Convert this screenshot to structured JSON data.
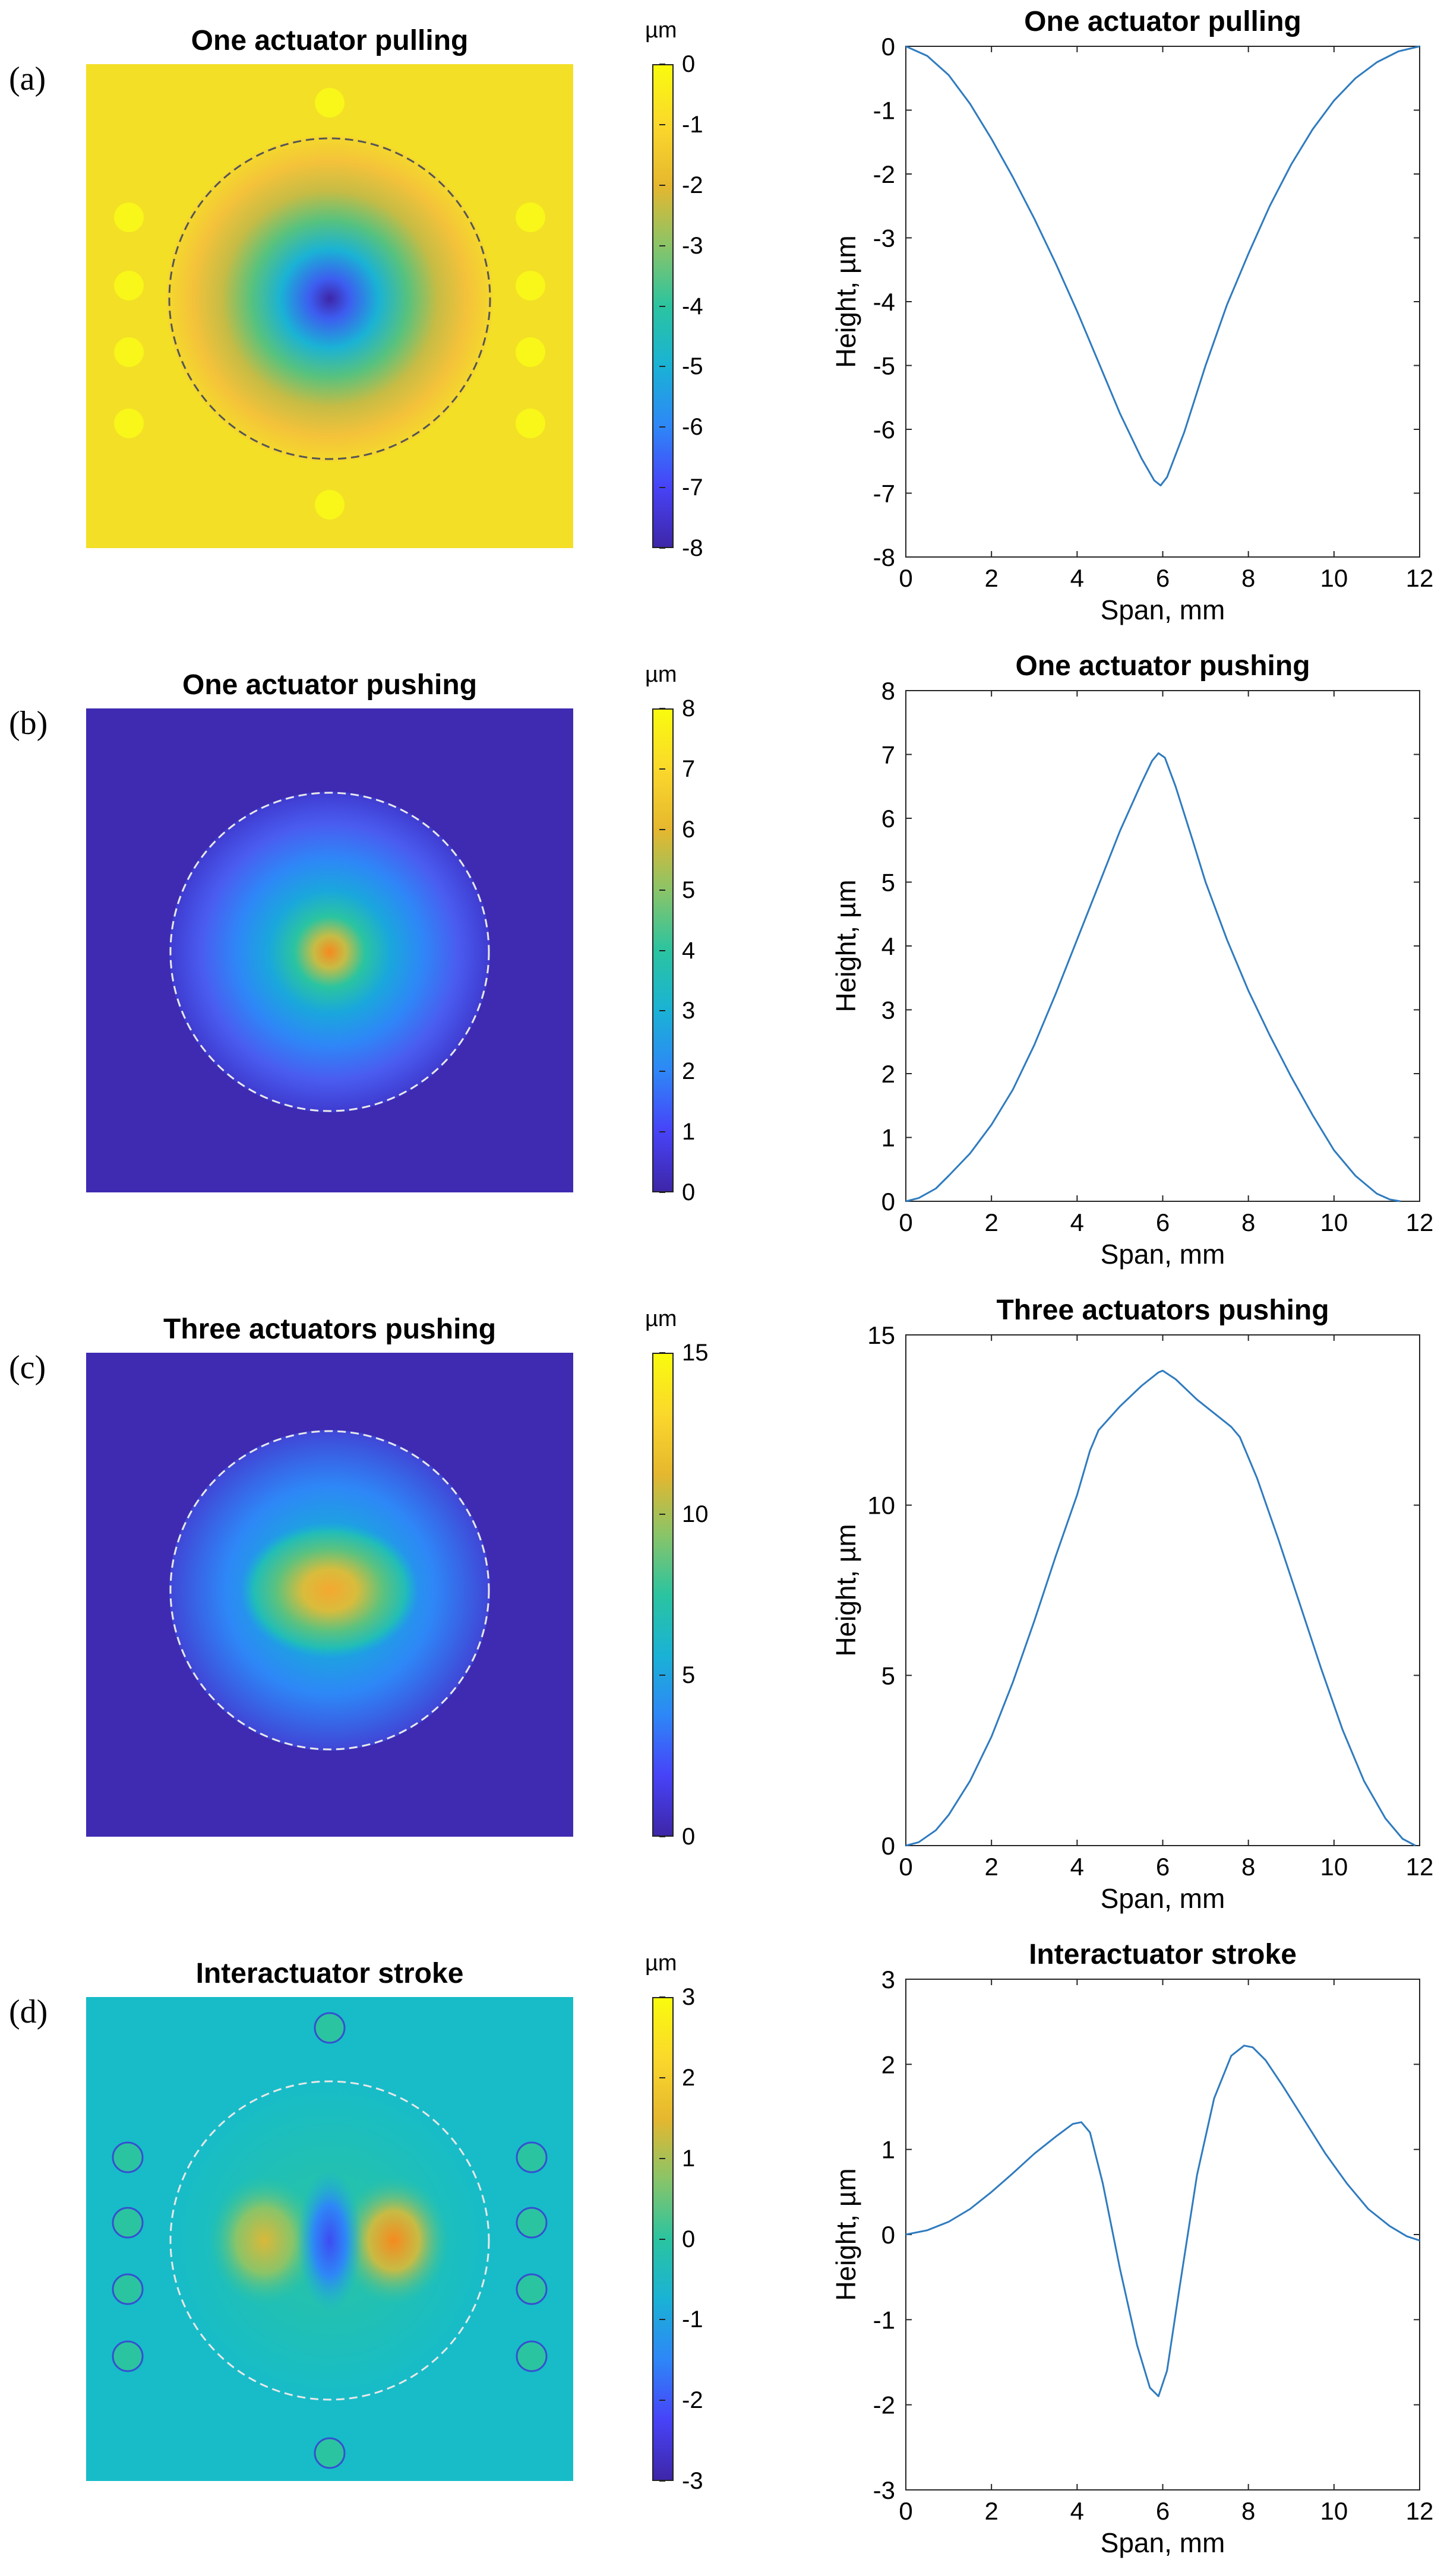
{
  "figure": {
    "panels": [
      {
        "label": "(a)",
        "map_title": "One actuator pulling",
        "colorbar_unit": "µm",
        "colorbar_ticks": [
          "0",
          "-1",
          "-2",
          "-3",
          "-4",
          "-5",
          "-6",
          "-7",
          "-8"
        ]
      },
      {
        "label": "(b)",
        "map_title": "One actuator pushing",
        "colorbar_unit": "µm",
        "colorbar_ticks": [
          "8",
          "7",
          "6",
          "5",
          "4",
          "3",
          "2",
          "1",
          "0"
        ]
      },
      {
        "label": "(c)",
        "map_title": "Three actuators pushing",
        "colorbar_unit": "µm",
        "colorbar_ticks": [
          "15",
          "10",
          "5",
          "0"
        ]
      },
      {
        "label": "(d)",
        "map_title": "Interactuator stroke",
        "colorbar_unit": "µm",
        "colorbar_ticks": [
          "3",
          "2",
          "1",
          "0",
          "-1",
          "-2",
          "-3"
        ]
      }
    ]
  },
  "colors": {
    "line": "#2f7bbf",
    "parula": [
      "#3e26a8",
      "#4743f8",
      "#2e87f7",
      "#1ab2d5",
      "#2bc4a0",
      "#8ac468",
      "#e5b72f",
      "#fbd82c",
      "#f9fb0e"
    ]
  },
  "chart_data": [
    {
      "type": "line",
      "title": "One actuator pulling",
      "xlabel": "Span, mm",
      "ylabel": "Height, µm",
      "xlim": [
        0,
        12
      ],
      "ylim": [
        -8,
        0
      ],
      "xticks": [
        0,
        2,
        4,
        6,
        8,
        10,
        12
      ],
      "yticks": [
        -8,
        -7,
        -6,
        -5,
        -4,
        -3,
        -2,
        -1,
        0
      ],
      "x": [
        0,
        0.5,
        1,
        1.5,
        2,
        2.5,
        3,
        3.5,
        4,
        4.5,
        5,
        5.5,
        5.8,
        5.95,
        6.1,
        6.5,
        7,
        7.5,
        8,
        8.5,
        9,
        9.5,
        10,
        10.5,
        11,
        11.5,
        12
      ],
      "y": [
        0,
        -0.15,
        -0.45,
        -0.9,
        -1.45,
        -2.05,
        -2.7,
        -3.4,
        -4.15,
        -4.95,
        -5.75,
        -6.45,
        -6.8,
        -6.88,
        -6.75,
        -6.05,
        -5.0,
        -4.05,
        -3.25,
        -2.5,
        -1.85,
        -1.3,
        -0.85,
        -0.5,
        -0.25,
        -0.08,
        0
      ]
    },
    {
      "type": "line",
      "title": "One actuator pushing",
      "xlabel": "Span, mm",
      "ylabel": "Height, µm",
      "xlim": [
        0,
        12
      ],
      "ylim": [
        0,
        8
      ],
      "xticks": [
        0,
        2,
        4,
        6,
        8,
        10,
        12
      ],
      "yticks": [
        0,
        1,
        2,
        3,
        4,
        5,
        6,
        7,
        8
      ],
      "x": [
        0,
        0.3,
        0.7,
        1,
        1.5,
        2,
        2.5,
        3,
        3.5,
        4,
        4.5,
        5,
        5.5,
        5.75,
        5.9,
        6.05,
        6.3,
        6.7,
        7,
        7.5,
        8,
        8.5,
        9,
        9.5,
        10,
        10.5,
        11,
        11.3,
        11.55
      ],
      "y": [
        0,
        0.05,
        0.2,
        0.4,
        0.75,
        1.2,
        1.75,
        2.45,
        3.25,
        4.1,
        4.95,
        5.8,
        6.55,
        6.9,
        7.02,
        6.95,
        6.5,
        5.65,
        5.0,
        4.1,
        3.3,
        2.6,
        1.95,
        1.35,
        0.8,
        0.4,
        0.12,
        0.03,
        0
      ]
    },
    {
      "type": "line",
      "title": "Three actuators pushing",
      "xlabel": "Span, mm",
      "ylabel": "Height, µm",
      "xlim": [
        0,
        12
      ],
      "ylim": [
        0,
        15
      ],
      "xticks": [
        0,
        2,
        4,
        6,
        8,
        10,
        12
      ],
      "yticks": [
        0,
        5,
        10,
        15
      ],
      "x": [
        0,
        0.3,
        0.7,
        1,
        1.5,
        2,
        2.5,
        3,
        3.5,
        4,
        4.3,
        4.5,
        5,
        5.5,
        5.9,
        6.0,
        6.3,
        6.8,
        7.3,
        7.6,
        7.8,
        8.2,
        8.7,
        9.2,
        9.7,
        10.2,
        10.7,
        11.2,
        11.6,
        11.9
      ],
      "y": [
        0,
        0.1,
        0.45,
        0.9,
        1.9,
        3.2,
        4.8,
        6.6,
        8.5,
        10.3,
        11.6,
        12.2,
        12.9,
        13.5,
        13.9,
        13.95,
        13.7,
        13.1,
        12.6,
        12.3,
        12.0,
        10.8,
        9.0,
        7.1,
        5.2,
        3.4,
        1.9,
        0.8,
        0.2,
        0
      ]
    },
    {
      "type": "line",
      "title": "Interactuator stroke",
      "xlabel": "Span, mm",
      "ylabel": "Height, µm",
      "xlim": [
        0,
        12
      ],
      "ylim": [
        -3,
        3
      ],
      "xticks": [
        0,
        2,
        4,
        6,
        8,
        10,
        12
      ],
      "yticks": [
        -3,
        -2,
        -1,
        0,
        1,
        2,
        3
      ],
      "x": [
        0,
        0.5,
        1,
        1.5,
        2,
        2.5,
        3,
        3.5,
        3.9,
        4.1,
        4.3,
        4.6,
        5.0,
        5.4,
        5.7,
        5.9,
        6.1,
        6.4,
        6.8,
        7.2,
        7.6,
        7.9,
        8.1,
        8.4,
        8.8,
        9.3,
        9.8,
        10.3,
        10.8,
        11.3,
        11.7,
        12
      ],
      "y": [
        0,
        0.05,
        0.15,
        0.3,
        0.5,
        0.72,
        0.95,
        1.15,
        1.3,
        1.32,
        1.2,
        0.6,
        -0.4,
        -1.3,
        -1.8,
        -1.9,
        -1.6,
        -0.6,
        0.7,
        1.6,
        2.1,
        2.22,
        2.2,
        2.05,
        1.75,
        1.35,
        0.95,
        0.6,
        0.3,
        0.1,
        -0.02,
        -0.07
      ]
    }
  ]
}
